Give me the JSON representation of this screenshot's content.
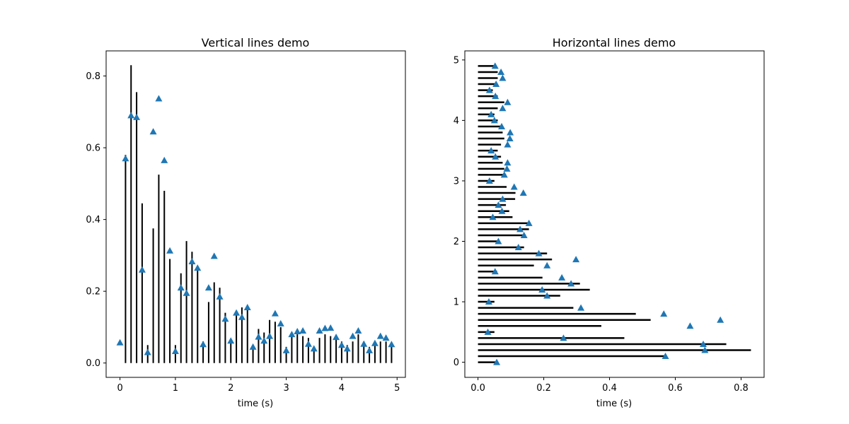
{
  "chart_data": [
    {
      "type": "vlines",
      "title": "Vertical lines demo",
      "xlabel": "time (s)",
      "ylabel": "",
      "xlim": [
        -0.25,
        5.15
      ],
      "ylim": [
        -0.04,
        0.87
      ],
      "xticks": [
        0,
        1,
        2,
        3,
        4,
        5
      ],
      "yticks": [
        0.0,
        0.2,
        0.4,
        0.6,
        0.8
      ],
      "tick_labels_x": [
        "0",
        "1",
        "2",
        "3",
        "4",
        "5"
      ],
      "tick_labels_y": [
        "0.0",
        "0.2",
        "0.4",
        "0.6",
        "0.8"
      ],
      "line_color": "#000000",
      "marker_color": "#1f77b4",
      "marker": "triangle",
      "x": [
        0.0,
        0.1,
        0.2,
        0.3,
        0.4,
        0.5,
        0.6,
        0.7,
        0.8,
        0.9,
        1.0,
        1.1,
        1.2,
        1.3,
        1.4,
        1.5,
        1.6,
        1.7,
        1.8,
        1.9,
        2.0,
        2.1,
        2.2,
        2.3,
        2.4,
        2.5,
        2.6,
        2.7,
        2.8,
        2.9,
        3.0,
        3.1,
        3.2,
        3.3,
        3.4,
        3.5,
        3.6,
        3.7,
        3.8,
        3.9,
        4.0,
        4.1,
        4.2,
        4.3,
        4.4,
        4.5,
        4.6,
        4.7,
        4.8,
        4.9
      ],
      "line_top": [
        0.0,
        0.58,
        0.83,
        0.755,
        0.445,
        0.05,
        0.375,
        0.525,
        0.48,
        0.29,
        0.05,
        0.25,
        0.34,
        0.31,
        0.26,
        0.06,
        0.17,
        0.225,
        0.21,
        0.14,
        0.065,
        0.145,
        0.155,
        0.16,
        0.05,
        0.095,
        0.085,
        0.12,
        0.115,
        0.1,
        0.045,
        0.085,
        0.08,
        0.075,
        0.07,
        0.04,
        0.07,
        0.08,
        0.075,
        0.07,
        0.06,
        0.05,
        0.06,
        0.08,
        0.06,
        0.045,
        0.06,
        0.06,
        0.06,
        0.05
      ],
      "markers": [
        0.057,
        0.57,
        0.69,
        0.685,
        0.26,
        0.03,
        0.645,
        0.737,
        0.565,
        0.313,
        0.033,
        0.21,
        0.195,
        0.283,
        0.265,
        0.052,
        0.21,
        0.298,
        0.185,
        0.123,
        0.062,
        0.14,
        0.128,
        0.155,
        0.045,
        0.073,
        0.062,
        0.075,
        0.138,
        0.11,
        0.035,
        0.08,
        0.088,
        0.09,
        0.053,
        0.04,
        0.09,
        0.097,
        0.098,
        0.072,
        0.05,
        0.04,
        0.075,
        0.09,
        0.053,
        0.035,
        0.055,
        0.075,
        0.07,
        0.052
      ]
    },
    {
      "type": "hlines",
      "title": "Horizontal lines demo",
      "xlabel": "time (s)",
      "ylabel": "",
      "xlim": [
        -0.04,
        0.87
      ],
      "ylim": [
        -0.25,
        5.15
      ],
      "xticks": [
        0.0,
        0.2,
        0.4,
        0.6,
        0.8
      ],
      "yticks": [
        0,
        1,
        2,
        3,
        4,
        5
      ],
      "tick_labels_x": [
        "0.0",
        "0.2",
        "0.4",
        "0.6",
        "0.8"
      ],
      "tick_labels_y": [
        "0",
        "1",
        "2",
        "3",
        "4",
        "5"
      ],
      "line_color": "#000000",
      "marker_color": "#1f77b4",
      "marker": "triangle",
      "y": [
        0.0,
        0.1,
        0.2,
        0.3,
        0.4,
        0.5,
        0.6,
        0.7,
        0.8,
        0.9,
        1.0,
        1.1,
        1.2,
        1.3,
        1.4,
        1.5,
        1.6,
        1.7,
        1.8,
        1.9,
        2.0,
        2.1,
        2.2,
        2.3,
        2.4,
        2.5,
        2.6,
        2.7,
        2.8,
        2.9,
        3.0,
        3.1,
        3.2,
        3.3,
        3.4,
        3.5,
        3.6,
        3.7,
        3.8,
        3.9,
        4.0,
        4.1,
        4.2,
        4.3,
        4.4,
        4.5,
        4.6,
        4.7,
        4.8,
        4.9
      ],
      "line_end": [
        0.055,
        0.57,
        0.83,
        0.755,
        0.445,
        0.05,
        0.375,
        0.525,
        0.48,
        0.29,
        0.05,
        0.25,
        0.34,
        0.31,
        0.196,
        0.058,
        0.17,
        0.225,
        0.21,
        0.14,
        0.065,
        0.145,
        0.155,
        0.16,
        0.105,
        0.095,
        0.085,
        0.113,
        0.114,
        0.087,
        0.05,
        0.085,
        0.08,
        0.075,
        0.07,
        0.06,
        0.07,
        0.08,
        0.075,
        0.07,
        0.06,
        0.05,
        0.06,
        0.08,
        0.06,
        0.045,
        0.06,
        0.06,
        0.06,
        0.05
      ],
      "markers": [
        0.057,
        0.57,
        0.69,
        0.685,
        0.26,
        0.03,
        0.645,
        0.737,
        0.565,
        0.313,
        0.033,
        0.21,
        0.195,
        0.283,
        0.255,
        0.052,
        0.21,
        0.298,
        0.185,
        0.123,
        0.062,
        0.14,
        0.128,
        0.155,
        0.045,
        0.073,
        0.062,
        0.075,
        0.138,
        0.11,
        0.035,
        0.08,
        0.088,
        0.09,
        0.053,
        0.04,
        0.09,
        0.097,
        0.098,
        0.072,
        0.05,
        0.04,
        0.075,
        0.09,
        0.053,
        0.035,
        0.055,
        0.075,
        0.07,
        0.052
      ]
    }
  ]
}
